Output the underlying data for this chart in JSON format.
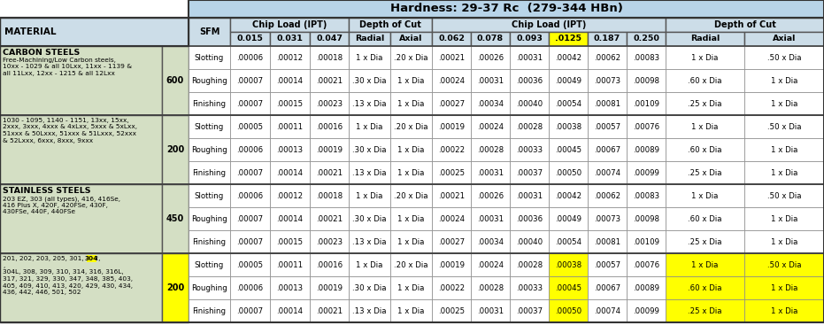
{
  "title": "Hardness: 29-37 Rc  (279-344 HBn)",
  "title_bg": "#b8d4e8",
  "col_header_bg": "#ccdde8",
  "material_bg": "#d4dfc4",
  "white_bg": "#ffffff",
  "yellow_bg": "#ffff00",
  "groups": [
    {
      "name": "CARBON STEELS",
      "subgroups": [
        {
          "desc": "Free-Machining/Low Carbon steels,\n10xx - 1029 & all 10Lxx, 11xx - 1139 &\nall 11Lxx, 12xx - 1215 & all 12Lxx",
          "sfm": "600",
          "sfm_highlight": false,
          "rows": [
            {
              "op": "Slotting",
              "v": [
                ".00006",
                ".00012",
                ".00018",
                "1 x Dia",
                ".20 x Dia",
                ".00021",
                ".00026",
                ".00031",
                ".00042",
                ".00062",
                ".00083",
                "1 x Dia",
                ".50 x Dia"
              ],
              "hi": []
            },
            {
              "op": "Roughing",
              "v": [
                ".00007",
                ".00014",
                ".00021",
                ".30 x Dia",
                "1 x Dia",
                ".00024",
                ".00031",
                ".00036",
                ".00049",
                ".00073",
                ".00098",
                ".60 x Dia",
                "1 x Dia"
              ],
              "hi": []
            },
            {
              "op": "Finishing",
              "v": [
                ".00007",
                ".00015",
                ".00023",
                ".13 x Dia",
                "1 x Dia",
                ".00027",
                ".00034",
                ".00040",
                ".00054",
                ".00081",
                ".00109",
                ".25 x Dia",
                "1 x Dia"
              ],
              "hi": []
            }
          ]
        },
        {
          "desc": "1030 - 1095, 1140 - 1151, 13xx, 15xx,\n2xxx, 3xxx, 4xxx & 4xLxx, 5xxx & 5xLxx,\n51xxx & 50Lxxx, 51xxx & 51Lxxx, 52xxx\n& 52Lxxx, 6xxx, 8xxx, 9xxx",
          "sfm": "200",
          "sfm_highlight": false,
          "rows": [
            {
              "op": "Slotting",
              "v": [
                ".00005",
                ".00011",
                ".00016",
                "1 x Dia",
                ".20 x Dia",
                ".00019",
                ".00024",
                ".00028",
                ".00038",
                ".00057",
                ".00076",
                "1 x Dia",
                ".50 x Dia"
              ],
              "hi": []
            },
            {
              "op": "Roughing",
              "v": [
                ".00006",
                ".00013",
                ".00019",
                ".30 x Dia",
                "1 x Dia",
                ".00022",
                ".00028",
                ".00033",
                ".00045",
                ".00067",
                ".00089",
                ".60 x Dia",
                "1 x Dia"
              ],
              "hi": []
            },
            {
              "op": "Finishing",
              "v": [
                ".00007",
                ".00014",
                ".00021",
                ".13 x Dia",
                "1 x Dia",
                ".00025",
                ".00031",
                ".00037",
                ".00050",
                ".00074",
                ".00099",
                ".25 x Dia",
                "1 x Dia"
              ],
              "hi": []
            }
          ]
        }
      ]
    },
    {
      "name": "STAINLESS STEELS",
      "subgroups": [
        {
          "desc": "203 EZ, 303 (all types), 416, 416Se,\n416 Plus X, 420F, 420FSe, 430F,\n430FSe, 440F, 440FSe",
          "sfm": "450",
          "sfm_highlight": false,
          "rows": [
            {
              "op": "Slotting",
              "v": [
                ".00006",
                ".00012",
                ".00018",
                "1 x Dia",
                ".20 x Dia",
                ".00021",
                ".00026",
                ".00031",
                ".00042",
                ".00062",
                ".00083",
                "1 x Dia",
                ".50 x Dia"
              ],
              "hi": []
            },
            {
              "op": "Roughing",
              "v": [
                ".00007",
                ".00014",
                ".00021",
                ".30 x Dia",
                "1 x Dia",
                ".00024",
                ".00031",
                ".00036",
                ".00049",
                ".00073",
                ".00098",
                ".60 x Dia",
                "1 x Dia"
              ],
              "hi": []
            },
            {
              "op": "Finishing",
              "v": [
                ".00007",
                ".00015",
                ".00023",
                ".13 x Dia",
                "1 x Dia",
                ".00027",
                ".00034",
                ".00040",
                ".00054",
                ".00081",
                ".00109",
                ".25 x Dia",
                "1 x Dia"
              ],
              "hi": []
            }
          ]
        },
        {
          "desc": "201, 202, 203, 205, 301, 302, ",
          "desc2": "304",
          "desc3": ",\n304L, 308, 309, 310, 314, 316, 316L,\n317, 321, 329, 330, 347, 348, 385, 403,\n405, 409, 410, 413, 420, 429, 430, 434,\n436, 442, 446, 501, 502",
          "sfm": "200",
          "sfm_highlight": true,
          "rows": [
            {
              "op": "Slotting",
              "v": [
                ".00005",
                ".00011",
                ".00016",
                "1 x Dia",
                ".20 x Dia",
                ".00019",
                ".00024",
                ".00028",
                ".00038",
                ".00057",
                ".00076",
                "1 x Dia",
                ".50 x Dia"
              ],
              "hi": [
                8,
                11,
                12
              ]
            },
            {
              "op": "Roughing",
              "v": [
                ".00006",
                ".00013",
                ".00019",
                ".30 x Dia",
                "1 x Dia",
                ".00022",
                ".00028",
                ".00033",
                ".00045",
                ".00067",
                ".00089",
                ".60 x Dia",
                "1 x Dia"
              ],
              "hi": [
                8,
                11,
                12
              ]
            },
            {
              "op": "Finishing",
              "v": [
                ".00007",
                ".00014",
                ".00021",
                ".13 x Dia",
                "1 x Dia",
                ".00025",
                ".00031",
                ".00037",
                ".00050",
                ".00074",
                ".00099",
                ".25 x Dia",
                "1 x Dia"
              ],
              "hi": [
                8,
                11,
                12
              ]
            }
          ]
        }
      ]
    }
  ]
}
